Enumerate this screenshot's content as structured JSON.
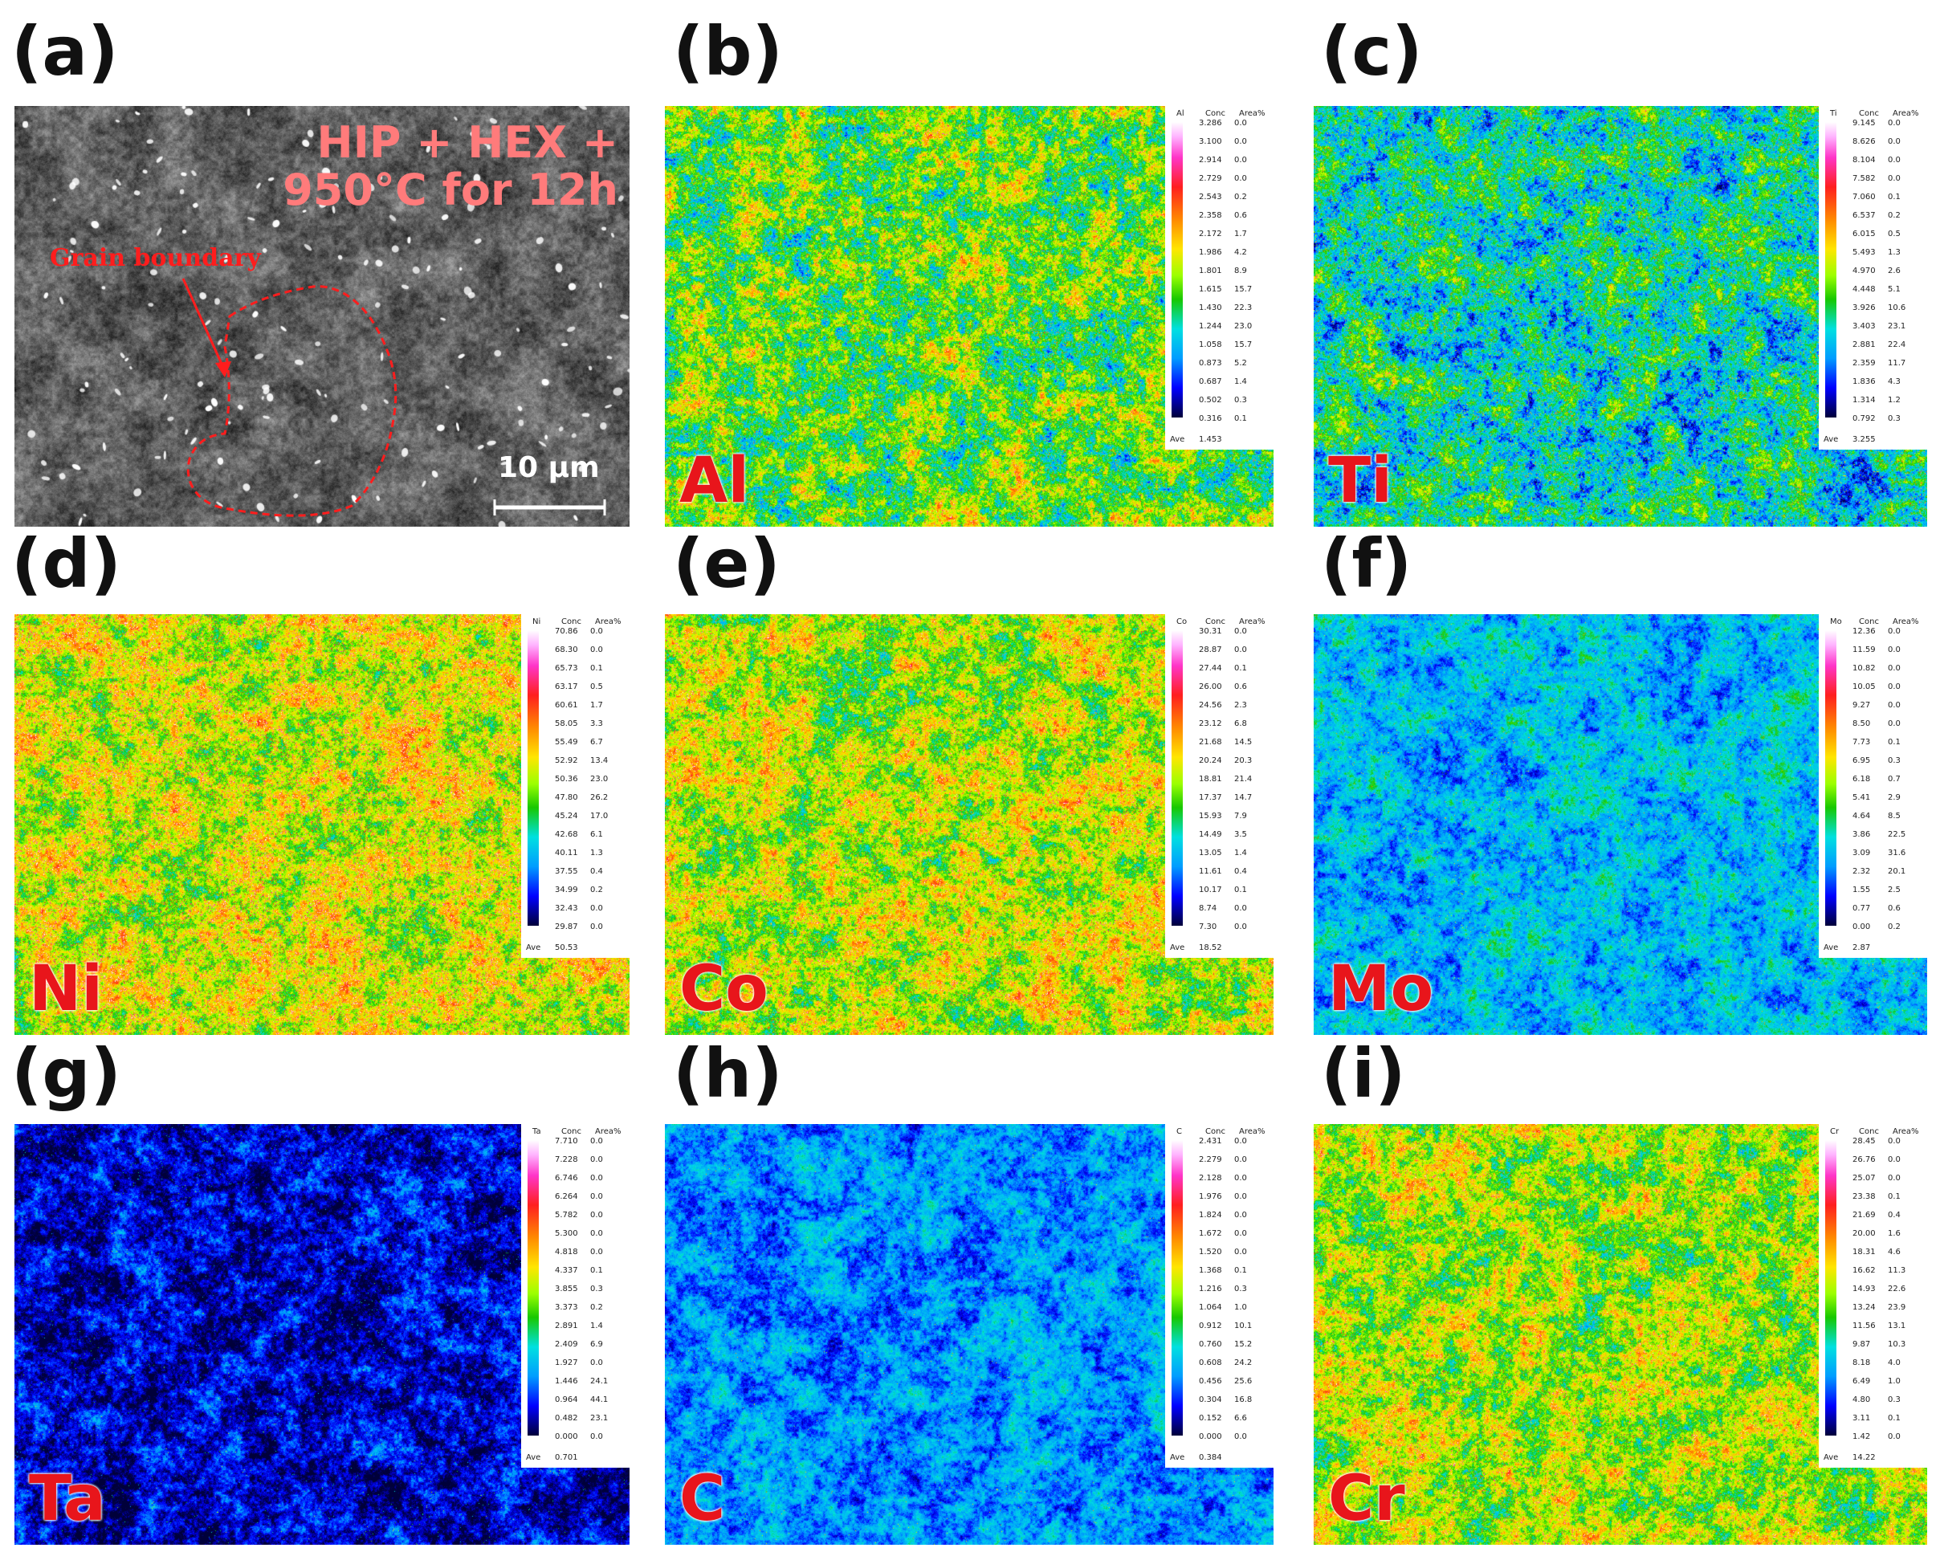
{
  "panels": [
    {
      "letter": "(a)",
      "type": "sem",
      "condition_line1": "HIP + HEX +",
      "condition_line2": "950°C for 12h",
      "grain_label": "Grain boundary",
      "scale_label": "10 μm"
    },
    {
      "letter": "(b)",
      "type": "map",
      "element": "Al",
      "mean": 0.42,
      "spread": 0.17,
      "hot": 0.05,
      "legend": {
        "sym": "Al",
        "conc": [
          "3.286",
          "3.100",
          "2.914",
          "2.729",
          "2.543",
          "2.358",
          "2.172",
          "1.986",
          "1.801",
          "1.615",
          "1.430",
          "1.244",
          "1.058",
          "0.873",
          "0.687",
          "0.502",
          "0.316"
        ],
        "area": [
          "0.0",
          "0.0",
          "0.0",
          "0.0",
          "0.2",
          "0.6",
          "1.7",
          "4.2",
          "8.9",
          "15.7",
          "22.3",
          "23.0",
          "15.7",
          "5.2",
          "1.4",
          "0.3",
          "0.1"
        ],
        "ave": "1.453"
      }
    },
    {
      "letter": "(c)",
      "type": "map",
      "element": "Ti",
      "mean": 0.3,
      "spread": 0.16,
      "hot": 0.05,
      "legend": {
        "sym": "Ti",
        "conc": [
          "9.145",
          "8.626",
          "8.104",
          "7.582",
          "7.060",
          "6.537",
          "6.015",
          "5.493",
          "4.970",
          "4.448",
          "3.926",
          "3.403",
          "2.881",
          "2.359",
          "1.836",
          "1.314",
          "0.792"
        ],
        "area": [
          "0.0",
          "0.0",
          "0.0",
          "0.0",
          "0.1",
          "0.2",
          "0.5",
          "1.3",
          "2.6",
          "5.1",
          "10.6",
          "23.1",
          "22.4",
          "11.7",
          "4.3",
          "1.2",
          "0.3"
        ],
        "ave": "3.255"
      }
    },
    {
      "letter": "(d)",
      "type": "map",
      "element": "Ni",
      "mean": 0.52,
      "spread": 0.14,
      "hot": 0.1,
      "legend": {
        "sym": "Ni",
        "conc": [
          "70.86",
          "68.30",
          "65.73",
          "63.17",
          "60.61",
          "58.05",
          "55.49",
          "52.92",
          "50.36",
          "47.80",
          "45.24",
          "42.68",
          "40.11",
          "37.55",
          "34.99",
          "32.43",
          "29.87"
        ],
        "area": [
          "0.0",
          "0.0",
          "0.1",
          "0.5",
          "1.7",
          "3.3",
          "6.7",
          "13.4",
          "23.0",
          "26.2",
          "17.0",
          "6.1",
          "1.3",
          "0.4",
          "0.2",
          "0.0",
          "0.0"
        ],
        "ave": "50.53"
      }
    },
    {
      "letter": "(e)",
      "type": "map",
      "element": "Co",
      "mean": 0.5,
      "spread": 0.15,
      "hot": 0.07,
      "legend": {
        "sym": "Co",
        "conc": [
          "30.31",
          "28.87",
          "27.44",
          "26.00",
          "24.56",
          "23.12",
          "21.68",
          "20.24",
          "18.81",
          "17.37",
          "15.93",
          "14.49",
          "13.05",
          "11.61",
          "10.17",
          "8.74",
          "7.30"
        ],
        "area": [
          "0.0",
          "0.0",
          "0.1",
          "0.6",
          "2.3",
          "6.8",
          "14.5",
          "20.3",
          "21.4",
          "14.7",
          "7.9",
          "3.5",
          "1.4",
          "0.4",
          "0.1",
          "0.0",
          "0.0"
        ],
        "ave": "18.52"
      }
    },
    {
      "letter": "(f)",
      "type": "map",
      "element": "Mo",
      "mean": 0.24,
      "spread": 0.1,
      "hot": 0.01,
      "legend": {
        "sym": "Mo",
        "conc": [
          "12.36",
          "11.59",
          "10.82",
          "10.05",
          "9.27",
          "8.50",
          "7.73",
          "6.95",
          "6.18",
          "5.41",
          "4.64",
          "3.86",
          "3.09",
          "2.32",
          "1.55",
          "0.77",
          "0.00"
        ],
        "area": [
          "0.0",
          "0.0",
          "0.0",
          "0.0",
          "0.0",
          "0.0",
          "0.1",
          "0.3",
          "0.7",
          "2.9",
          "8.5",
          "22.5",
          "31.6",
          "20.1",
          "2.5",
          "0.6",
          "0.2"
        ],
        "ave": "2.87"
      }
    },
    {
      "letter": "(g)",
      "type": "map",
      "element": "Ta",
      "mean": 0.08,
      "spread": 0.1,
      "hot": 0.005,
      "legend": {
        "sym": "Ta",
        "conc": [
          "7.710",
          "7.228",
          "6.746",
          "6.264",
          "5.782",
          "5.300",
          "4.818",
          "4.337",
          "3.855",
          "3.373",
          "2.891",
          "2.409",
          "1.927",
          "1.446",
          "0.964",
          "0.482",
          "0.000"
        ],
        "area": [
          "0.0",
          "0.0",
          "0.0",
          "0.0",
          "0.0",
          "0.0",
          "0.0",
          "0.1",
          "0.3",
          "0.2",
          "1.4",
          "6.9",
          "0.0",
          "24.1",
          "44.1",
          "23.1",
          "0.0"
        ],
        "ave": "0.701"
      }
    },
    {
      "letter": "(h)",
      "type": "map",
      "element": "C",
      "mean": 0.2,
      "spread": 0.09,
      "hot": 0.003,
      "legend": {
        "sym": "C",
        "conc": [
          "2.431",
          "2.279",
          "2.128",
          "1.976",
          "1.824",
          "1.672",
          "1.520",
          "1.368",
          "1.216",
          "1.064",
          "0.912",
          "0.760",
          "0.608",
          "0.456",
          "0.304",
          "0.152",
          "0.000"
        ],
        "area": [
          "0.0",
          "0.0",
          "0.0",
          "0.0",
          "0.0",
          "0.0",
          "0.0",
          "0.1",
          "0.3",
          "1.0",
          "10.1",
          "15.2",
          "24.2",
          "25.6",
          "16.8",
          "6.6",
          "0.0"
        ],
        "ave": "0.384"
      }
    },
    {
      "letter": "(i)",
      "type": "map",
      "element": "Cr",
      "mean": 0.48,
      "spread": 0.15,
      "hot": 0.06,
      "legend": {
        "sym": "Cr",
        "conc": [
          "28.45",
          "26.76",
          "25.07",
          "23.38",
          "21.69",
          "20.00",
          "18.31",
          "16.62",
          "14.93",
          "13.24",
          "11.56",
          "9.87",
          "8.18",
          "6.49",
          "4.80",
          "3.11",
          "1.42"
        ],
        "area": [
          "0.0",
          "0.0",
          "0.0",
          "0.1",
          "0.4",
          "1.6",
          "4.6",
          "11.3",
          "22.6",
          "23.9",
          "13.1",
          "10.3",
          "4.0",
          "1.0",
          "0.3",
          "0.1",
          "0.0"
        ],
        "ave": "14.22"
      }
    }
  ],
  "legend_headers": {
    "conc": "Conc",
    "area": "Area%",
    "ave": "Ave"
  },
  "colors": {
    "label_red": "#e8151b",
    "sem_text": "#ff7b7b",
    "gb_red": "#ff1d1d"
  }
}
